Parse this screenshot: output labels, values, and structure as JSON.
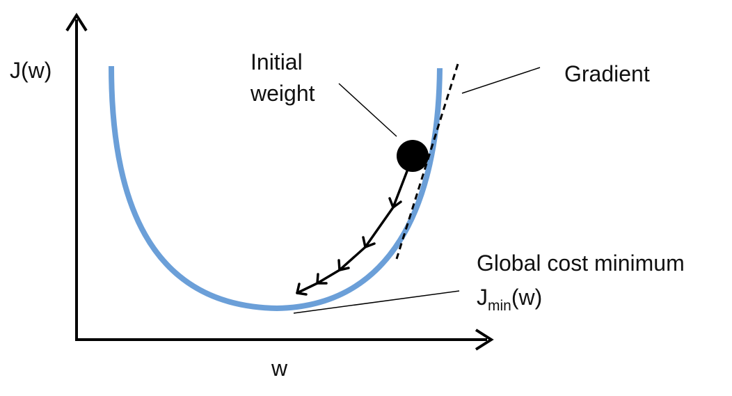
{
  "axes": {
    "y_label": "J(w)",
    "x_label": "w"
  },
  "annotations": {
    "initial_weight_line1": "Initial",
    "initial_weight_line2": "weight",
    "gradient": "Gradient",
    "global_min": "Global cost minimum",
    "jmin_base": "J",
    "jmin_sub": "min",
    "jmin_tail": "(w)"
  },
  "colors": {
    "curve": "#6b9fd8",
    "ink": "#000000"
  }
}
